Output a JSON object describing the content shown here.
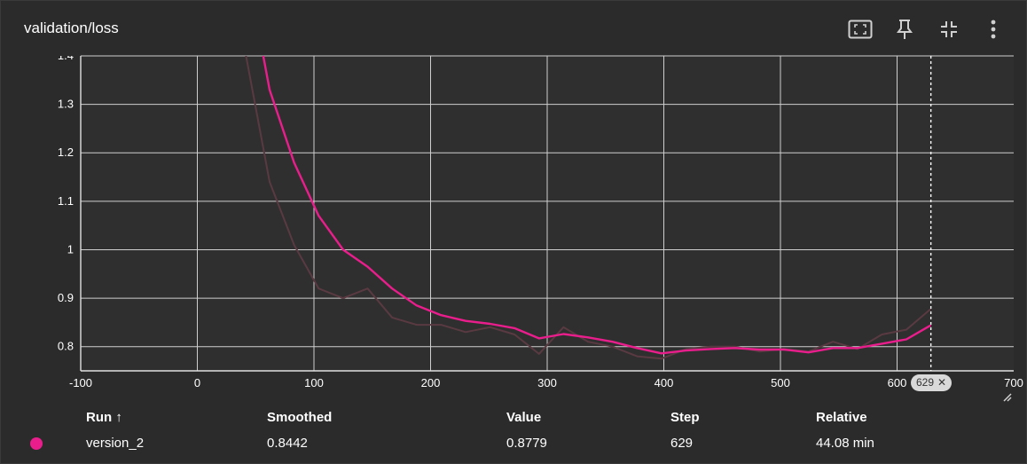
{
  "card": {
    "title": "validation/loss"
  },
  "toolbar": {
    "fit_icon": "fit-domain-icon",
    "pin_icon": "pin-icon",
    "collapse_icon": "collapse-icon",
    "more_icon": "more-vert-icon"
  },
  "chart_data": {
    "type": "line",
    "title": "",
    "xlabel": "",
    "ylabel": "",
    "xlim": [
      -100,
      700
    ],
    "ylim": [
      0.75,
      1.4
    ],
    "x_ticks": [
      -100,
      0,
      100,
      200,
      300,
      400,
      500,
      600,
      700
    ],
    "x_tick_labels": [
      "-100",
      "0",
      "100",
      "200",
      "300",
      "400",
      "500",
      "600",
      "700"
    ],
    "y_ticks": [
      0.8,
      0.9,
      1.0,
      1.1,
      1.2,
      1.3,
      1.4
    ],
    "y_tick_labels": [
      "0.8",
      "0.9",
      "1",
      "1.1",
      "1.2",
      "1.3",
      "1.4"
    ],
    "grid": true,
    "hover_step": 629,
    "hover_label": "629",
    "series": [
      {
        "name": "version_2",
        "kind": "raw",
        "color": "#5a3a42",
        "x": [
          41,
          62,
          83,
          104,
          125,
          146,
          167,
          188,
          209,
          230,
          251,
          272,
          293,
          314,
          335,
          356,
          377,
          398,
          419,
          440,
          461,
          482,
          503,
          524,
          545,
          566,
          587,
          608,
          629
        ],
        "y": [
          1.41,
          1.14,
          1.01,
          0.92,
          0.9,
          0.92,
          0.86,
          0.845,
          0.845,
          0.83,
          0.84,
          0.825,
          0.785,
          0.84,
          0.81,
          0.8,
          0.78,
          0.775,
          0.795,
          0.8,
          0.8,
          0.79,
          0.795,
          0.79,
          0.81,
          0.795,
          0.825,
          0.835,
          0.878
        ]
      },
      {
        "name": "version_2",
        "kind": "smoothed",
        "color": "#e91e8c",
        "x": [
          55,
          62,
          83,
          104,
          125,
          146,
          167,
          188,
          209,
          230,
          251,
          272,
          293,
          314,
          335,
          356,
          377,
          398,
          419,
          440,
          461,
          482,
          503,
          524,
          545,
          566,
          587,
          608,
          629
        ],
        "y": [
          1.42,
          1.33,
          1.18,
          1.07,
          1.0,
          0.965,
          0.92,
          0.885,
          0.865,
          0.853,
          0.847,
          0.838,
          0.817,
          0.826,
          0.819,
          0.81,
          0.797,
          0.786,
          0.792,
          0.795,
          0.797,
          0.794,
          0.794,
          0.788,
          0.797,
          0.797,
          0.806,
          0.815,
          0.8442
        ]
      }
    ]
  },
  "table": {
    "headers": {
      "run": "Run ↑",
      "smoothed": "Smoothed",
      "value": "Value",
      "step": "Step",
      "relative": "Relative"
    },
    "row": {
      "color": "#e91e8c",
      "run": "version_2",
      "smoothed": "0.8442",
      "value": "0.8779",
      "step": "629",
      "relative": "44.08 min"
    }
  }
}
